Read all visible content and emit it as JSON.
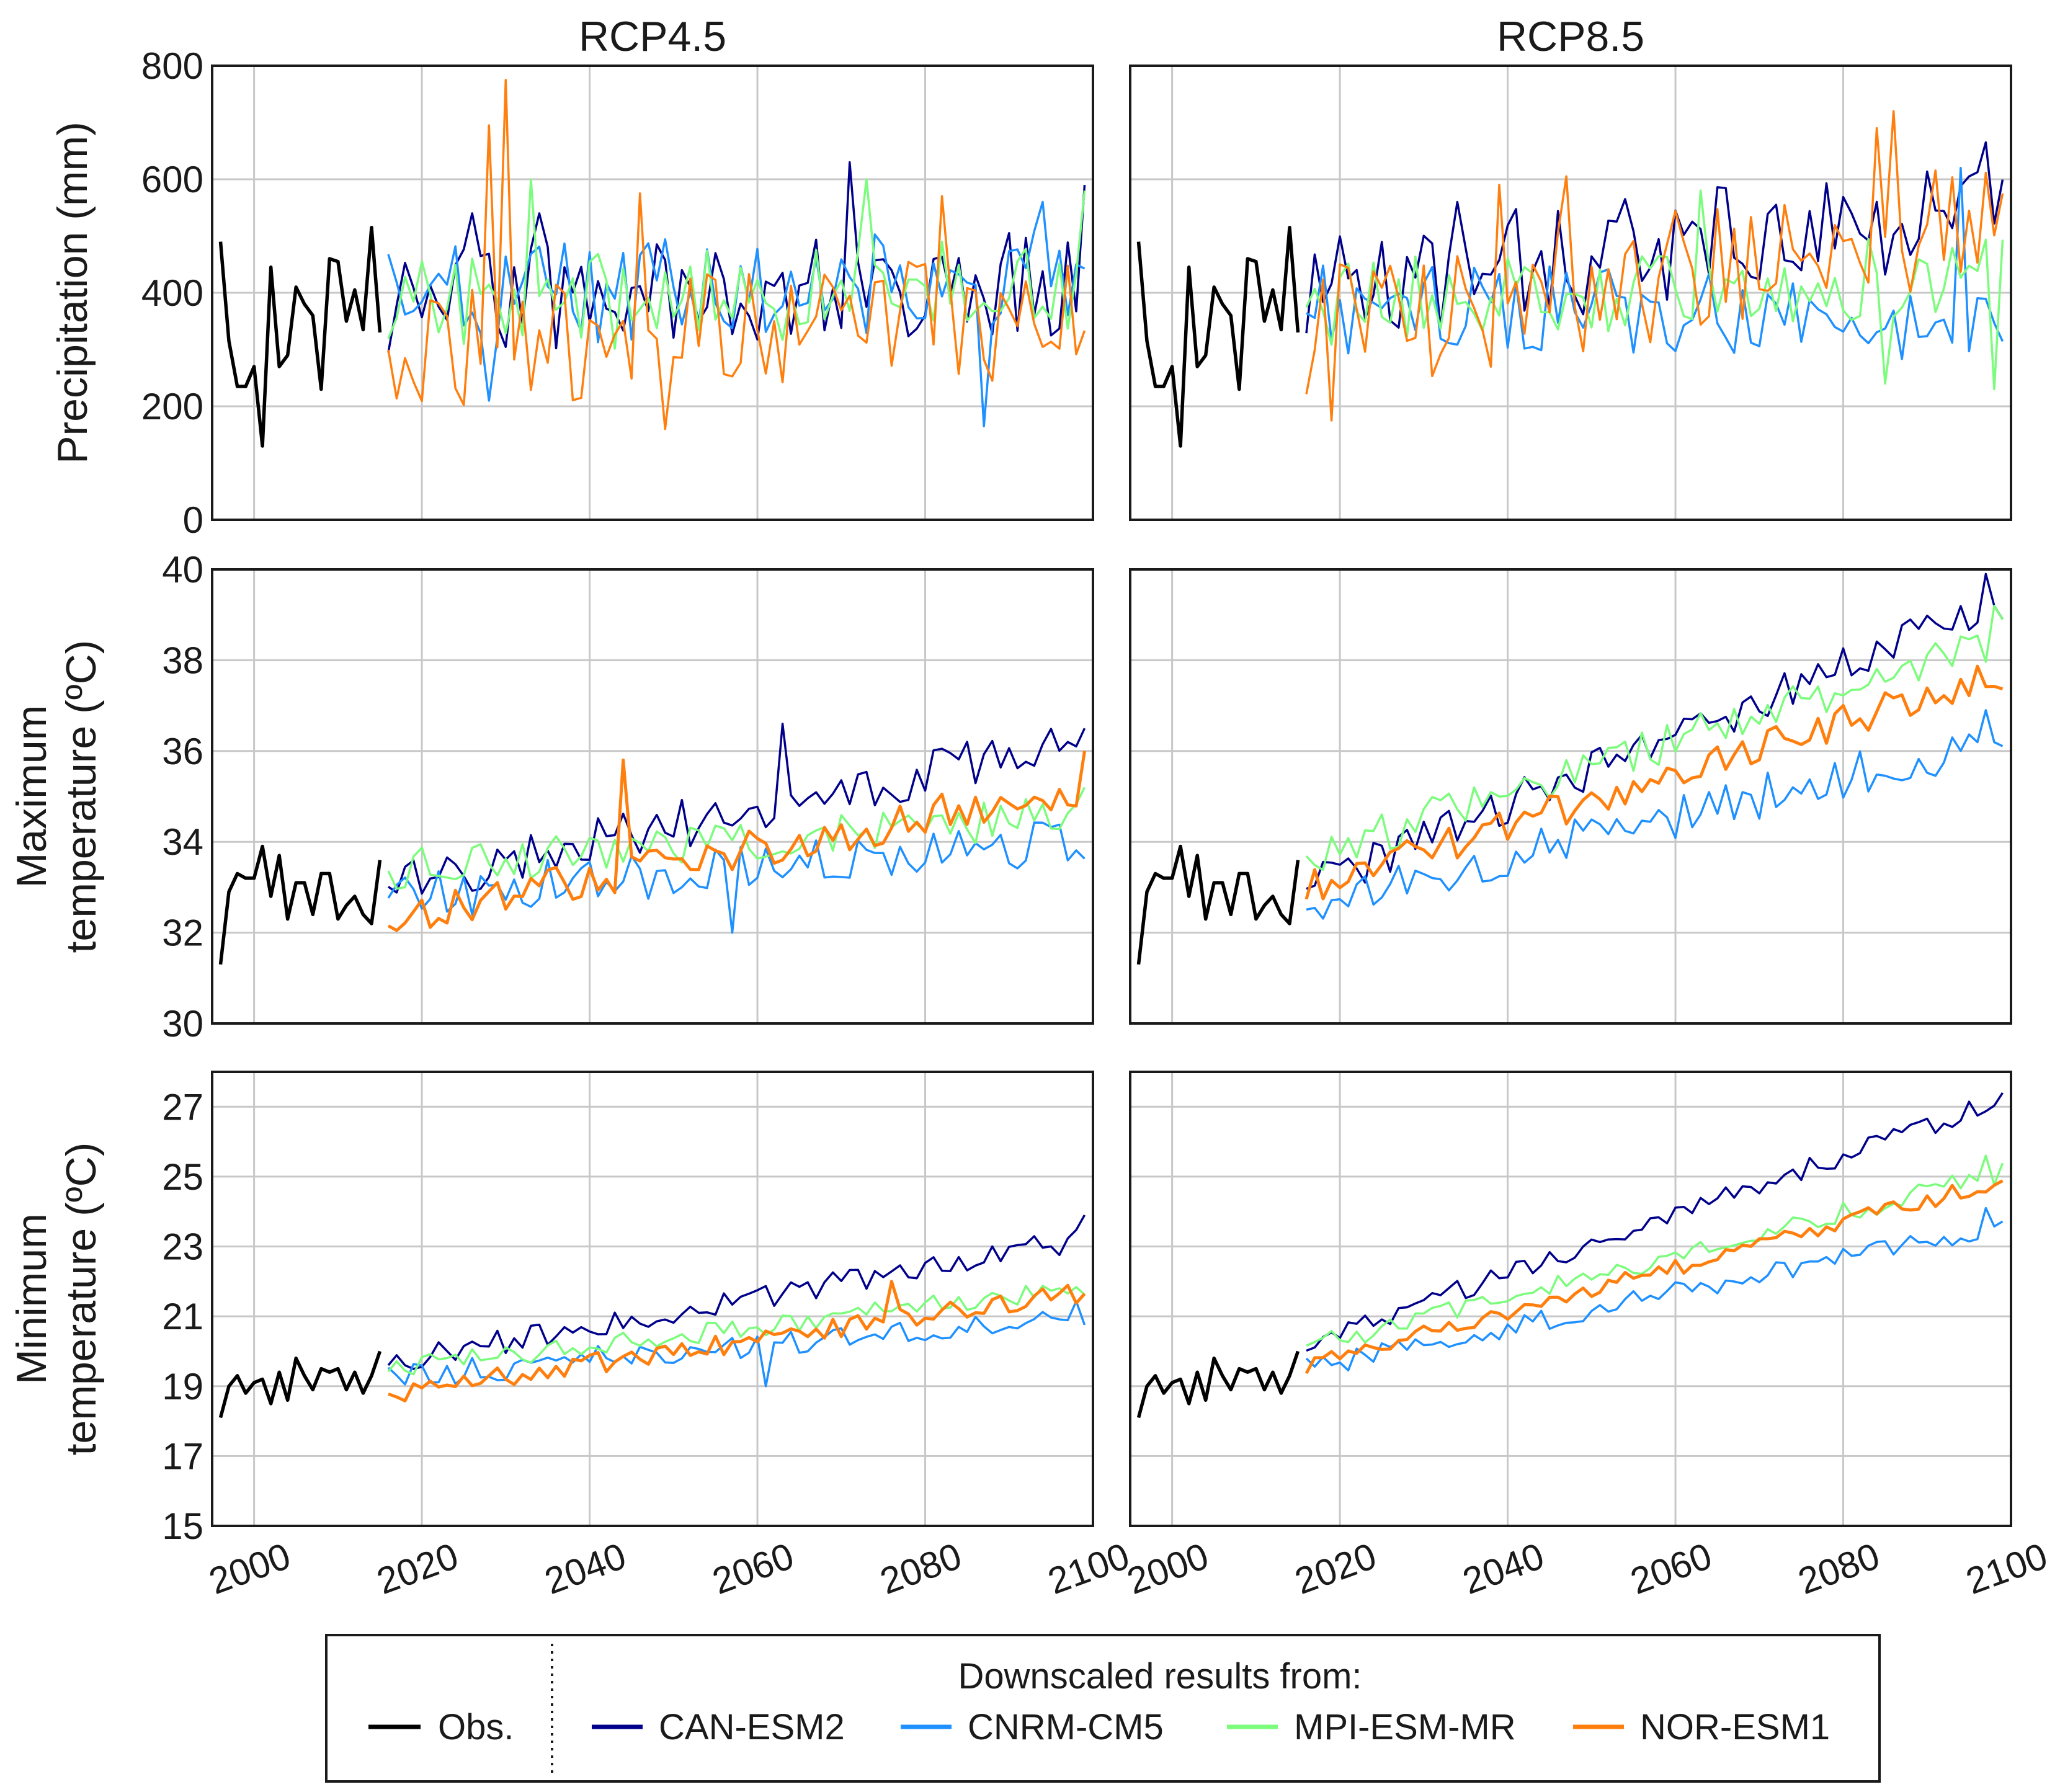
{
  "colors": {
    "obs": "#000000",
    "CAN-ESM2": "#00008b",
    "CNRM-CM5": "#1e90ff",
    "MPI-ESM-MR": "#7cfc7c",
    "NOR-ESM1": "#ff7f0e",
    "grid": "#c8c8c8",
    "frame": "#1a1a1a"
  },
  "legend": {
    "title": "Downscaled results from:",
    "obs": "Obs.",
    "models": [
      "CAN-ESM2",
      "CNRM-CM5",
      "MPI-ESM-MR",
      "NOR-ESM1"
    ]
  },
  "chart_data": {
    "type": "line",
    "columns": [
      "RCP4.5",
      "RCP8.5"
    ],
    "x": {
      "range": [
        1995,
        2100
      ],
      "ticks": [
        2000,
        2020,
        2040,
        2060,
        2080,
        2100
      ]
    },
    "obs_years": [
      1996,
      2015
    ],
    "model_years": [
      2016,
      2099
    ],
    "rows": [
      {
        "variable": "precip",
        "ylabel": [
          "Precipitation (mm)"
        ],
        "ylim": [
          0,
          800
        ],
        "yticks": [
          0,
          200,
          400,
          600,
          800
        ],
        "obs_values": [
          490,
          315,
          235,
          235,
          270,
          130,
          445,
          270,
          290,
          410,
          380,
          360,
          230,
          460,
          455,
          350,
          405,
          335,
          515,
          330
        ],
        "series": {
          "RCP4.5": {
            "CAN-ESM2": {
              "start": 380,
              "end": 420,
              "amp": 95,
              "peaks": [
                [
                  2026,
                  540
                ],
                [
                  2034,
                  540
                ],
                [
                  2071,
                  630
                ],
                [
                  2099,
                  590
                ]
              ]
            },
            "CNRM-CM5": {
              "start": 390,
              "end": 430,
              "amp": 90,
              "peaks": [
                [
                  2028,
                  210
                ],
                [
                  2044,
                  470
                ],
                [
                  2087,
                  165
                ],
                [
                  2094,
                  560
                ]
              ]
            },
            "MPI-ESM-MR": {
              "start": 370,
              "end": 420,
              "amp": 85,
              "peaks": [
                [
                  2033,
                  600
                ],
                [
                  2073,
                  600
                ],
                [
                  2099,
                  580
                ]
              ]
            },
            "NOR-ESM1": {
              "start": 305,
              "end": 360,
              "amp": 110,
              "peaks": [
                [
                  2028,
                  695
                ],
                [
                  2030,
                  775
                ],
                [
                  2046,
                  575
                ],
                [
                  2049,
                  160
                ],
                [
                  2082,
                  570
                ]
              ]
            }
          },
          "RCP8.5": {
            "CAN-ESM2": {
              "start": 410,
              "end": 540,
              "amp": 100,
              "peaks": [
                [
                  2034,
                  560
                ],
                [
                  2095,
                  605
                ],
                [
                  2097,
                  665
                ]
              ]
            },
            "CNRM-CM5": {
              "start": 370,
              "end": 360,
              "amp": 80,
              "peaks": [
                [
                  2094,
                  620
                ]
              ]
            },
            "MPI-ESM-MR": {
              "start": 380,
              "end": 440,
              "amp": 75,
              "peaks": [
                [
                  2063,
                  580
                ],
                [
                  2085,
                  240
                ],
                [
                  2098,
                  230
                ]
              ]
            },
            "NOR-ESM1": {
              "start": 330,
              "end": 520,
              "amp": 115,
              "peaks": [
                [
                  2019,
                  175
                ],
                [
                  2039,
                  590
                ],
                [
                  2047,
                  605
                ],
                [
                  2084,
                  690
                ],
                [
                  2086,
                  720
                ],
                [
                  2099,
                  575
                ]
              ]
            }
          }
        }
      },
      {
        "variable": "tmax",
        "ylabel": [
          "Maximum",
          "temperature (ºC)"
        ],
        "ylim": [
          30,
          40
        ],
        "yticks": [
          30,
          32,
          34,
          36,
          38,
          40
        ],
        "obs_values": [
          31.3,
          32.9,
          33.3,
          33.2,
          33.2,
          33.9,
          32.8,
          33.7,
          32.3,
          33.1,
          33.1,
          32.4,
          33.3,
          33.3,
          32.3,
          32.6,
          32.8,
          32.4,
          32.2,
          33.6
        ],
        "series": {
          "RCP4.5": {
            "CAN-ESM2": {
              "start": 33.0,
              "end": 36.3,
              "amp": 0.55,
              "peaks": [
                [
                  2063,
                  36.6
                ],
                [
                  2099,
                  36.5
                ]
              ]
            },
            "CNRM-CM5": {
              "start": 32.8,
              "end": 34.0,
              "amp": 0.55,
              "peaks": [
                [
                  2057,
                  32.0
                ]
              ]
            },
            "MPI-ESM-MR": {
              "start": 33.4,
              "end": 34.6,
              "amp": 0.45,
              "peaks": [
                [
                  2099,
                  35.2
                ]
              ]
            },
            "NOR-ESM1": {
              "start": 32.3,
              "end": 35.2,
              "amp": 0.45,
              "peaks": [
                [
                  2044,
                  35.8
                ],
                [
                  2099,
                  36.0
                ]
              ]
            }
          },
          "RCP8.5": {
            "CAN-ESM2": {
              "start": 33.0,
              "end": 39.3,
              "amp": 0.45,
              "peaks": [
                [
                  2097,
                  39.9
                ],
                [
                  2099,
                  38.9
                ]
              ]
            },
            "CNRM-CM5": {
              "start": 32.6,
              "end": 36.3,
              "amp": 0.5,
              "peaks": [
                [
                  2097,
                  36.9
                ]
              ]
            },
            "MPI-ESM-MR": {
              "start": 33.7,
              "end": 38.5,
              "amp": 0.45,
              "peaks": [
                [
                  2098,
                  39.2
                ]
              ]
            },
            "NOR-ESM1": {
              "start": 33.0,
              "end": 37.7,
              "amp": 0.38,
              "peaks": []
            }
          }
        }
      },
      {
        "variable": "tmin",
        "ylabel": [
          "Minimum",
          "temperature (ºC)"
        ],
        "ylim": [
          15,
          28
        ],
        "yticks": [
          15,
          17,
          19,
          21,
          23,
          25,
          27
        ],
        "obs_values": [
          18.1,
          19.0,
          19.3,
          18.8,
          19.1,
          19.2,
          18.5,
          19.4,
          18.6,
          19.8,
          19.3,
          18.9,
          19.5,
          19.4,
          19.5,
          18.9,
          19.4,
          18.8,
          19.3,
          20.0
        ],
        "series": {
          "RCP4.5": {
            "CAN-ESM2": {
              "start": 19.7,
              "end": 23.2,
              "amp": 0.35,
              "peaks": [
                [
                  2099,
                  23.9
                ]
              ]
            },
            "CNRM-CM5": {
              "start": 19.2,
              "end": 21.1,
              "amp": 0.38,
              "peaks": [
                [
                  2061,
                  19.0
                ]
              ]
            },
            "MPI-ESM-MR": {
              "start": 19.5,
              "end": 21.8,
              "amp": 0.3,
              "peaks": []
            },
            "NOR-ESM1": {
              "start": 18.8,
              "end": 21.7,
              "amp": 0.3,
              "peaks": [
                [
                  2076,
                  22.0
                ]
              ]
            }
          },
          "RCP8.5": {
            "CAN-ESM2": {
              "start": 20.2,
              "end": 27.2,
              "amp": 0.3,
              "peaks": [
                [
                  2099,
                  27.4
                ]
              ]
            },
            "CNRM-CM5": {
              "start": 19.5,
              "end": 23.6,
              "amp": 0.3,
              "peaks": [
                [
                  2097,
                  24.1
                ]
              ]
            },
            "MPI-ESM-MR": {
              "start": 20.1,
              "end": 25.1,
              "amp": 0.3,
              "peaks": [
                [
                  2097,
                  25.6
                ]
              ]
            },
            "NOR-ESM1": {
              "start": 19.6,
              "end": 24.9,
              "amp": 0.25,
              "peaks": []
            }
          }
        }
      }
    ]
  }
}
